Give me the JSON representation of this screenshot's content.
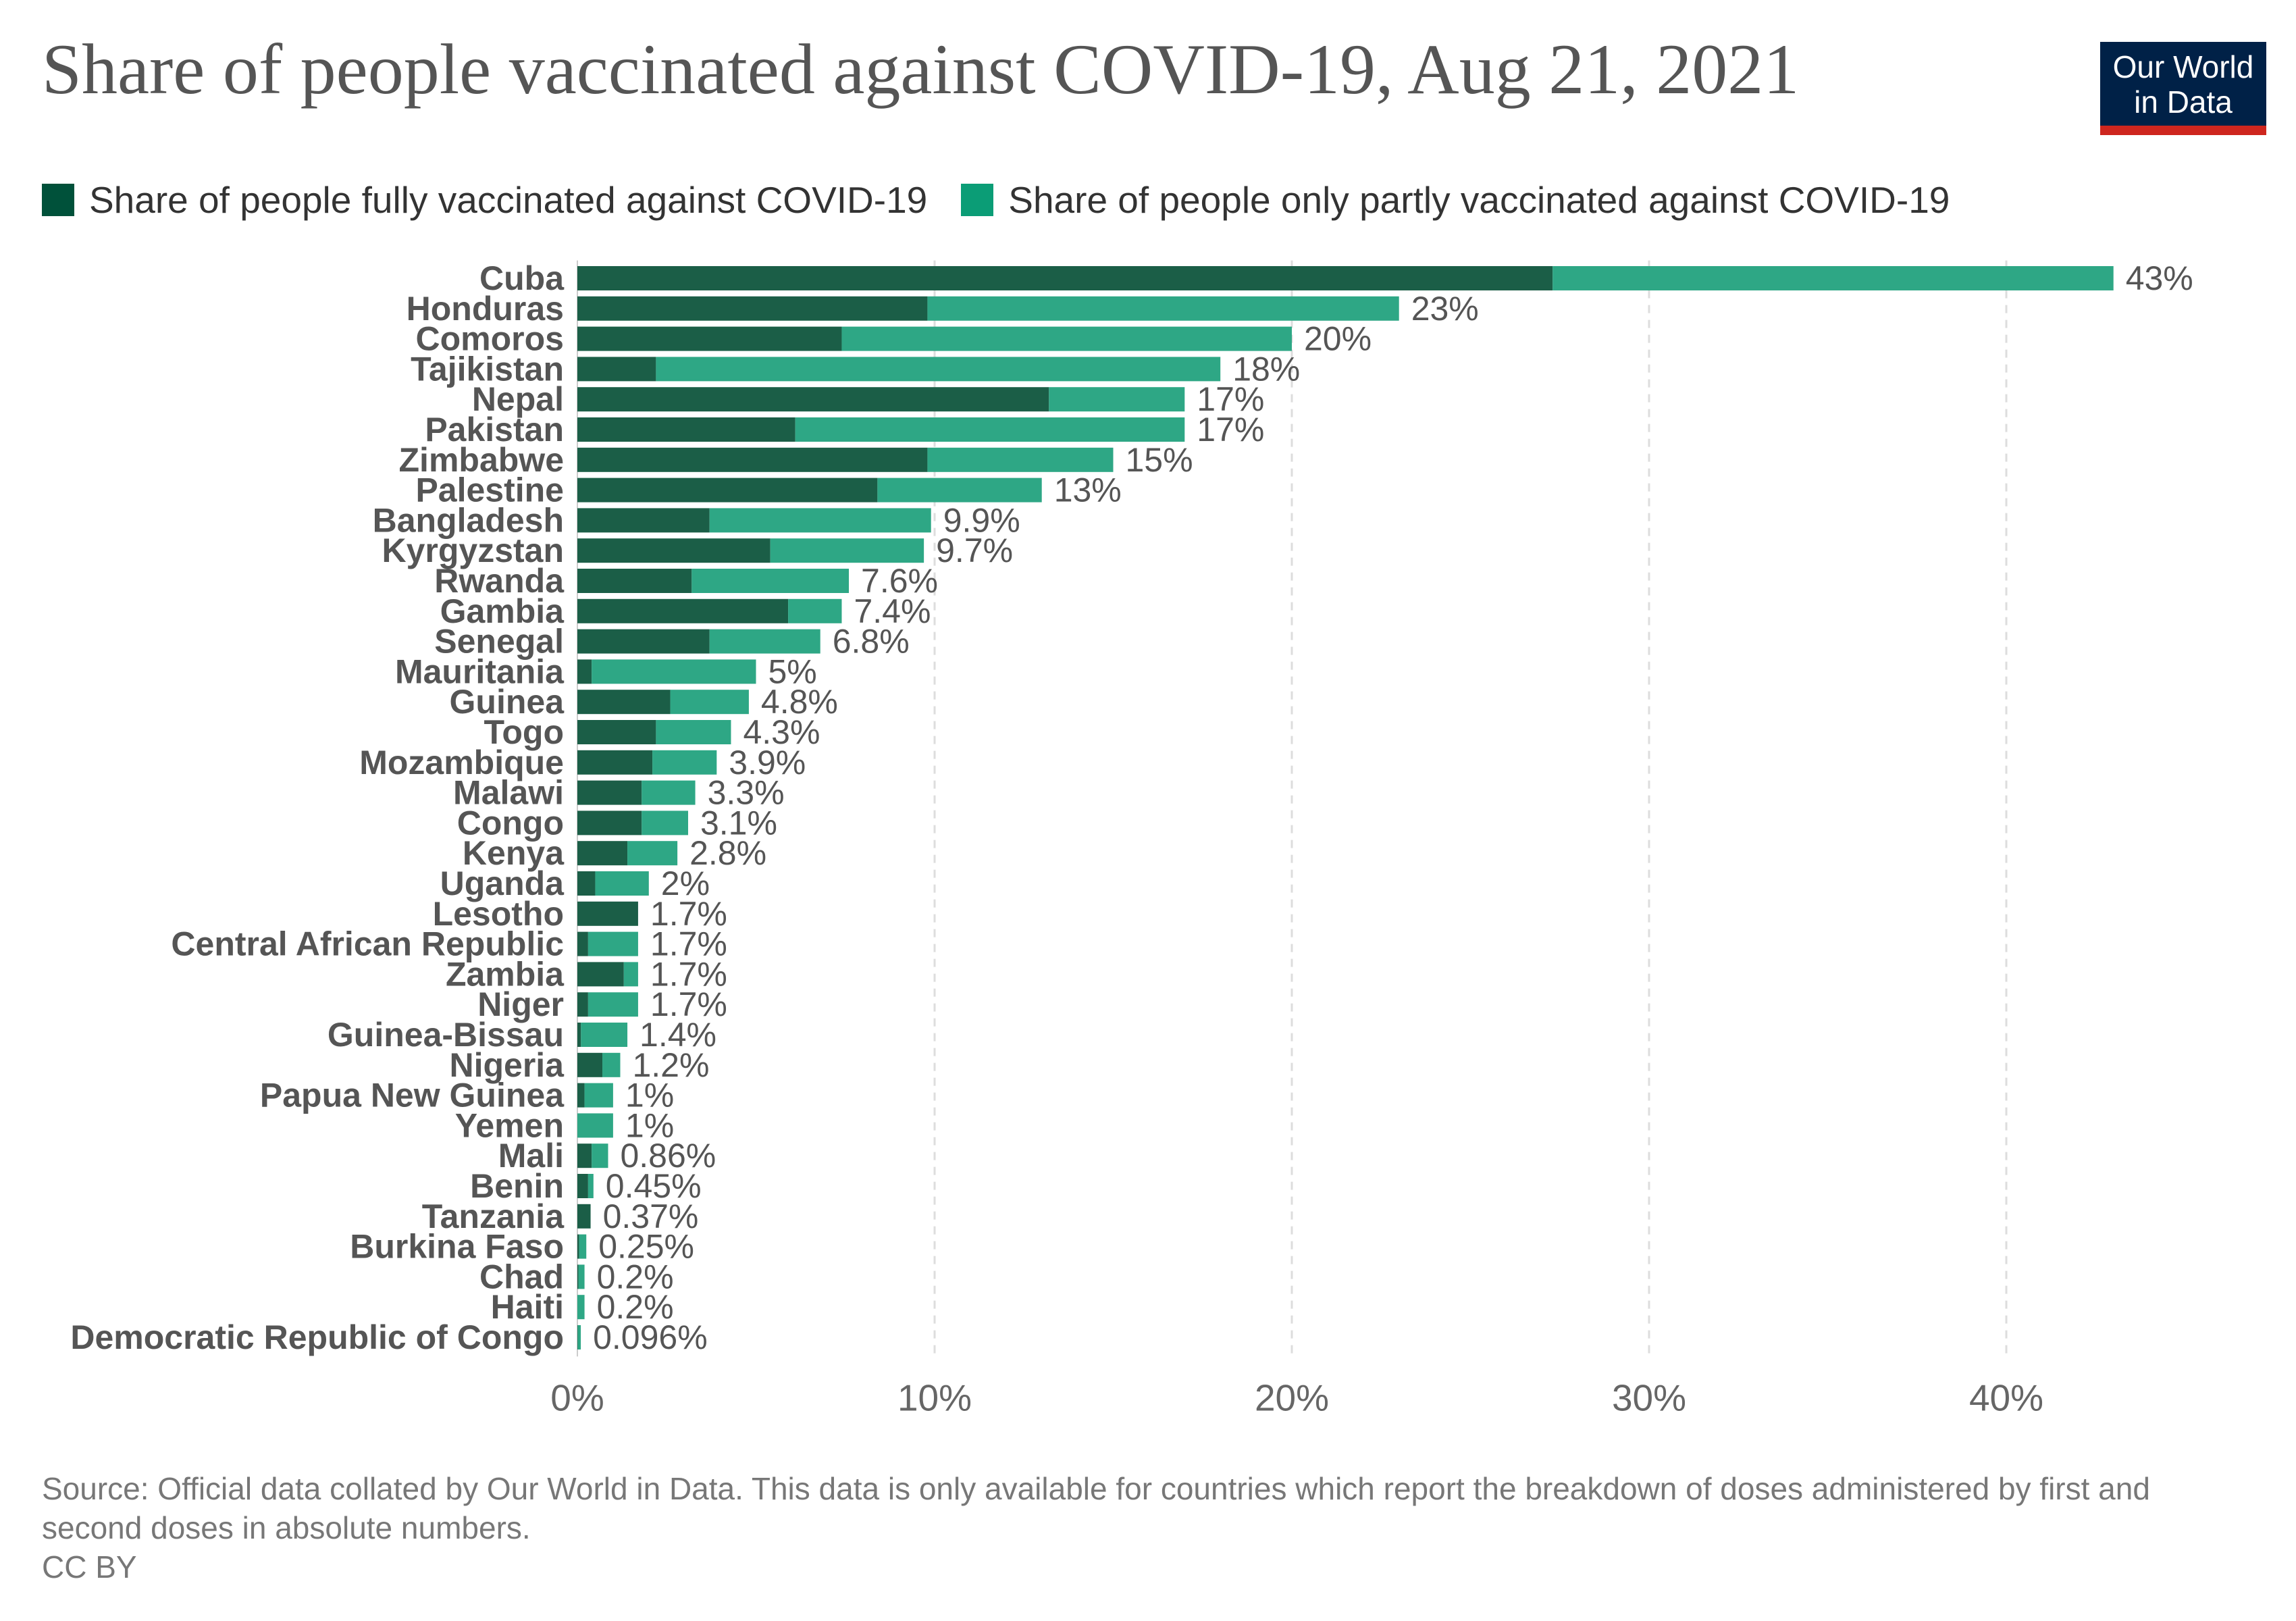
{
  "title": "Share of people vaccinated against COVID-19, Aug 21, 2021",
  "logo": {
    "line1": "Our World",
    "line2": "in Data"
  },
  "legend": [
    {
      "label": "Share of people fully vaccinated against COVID-19",
      "color": "#00513a"
    },
    {
      "label": "Share of people only partly vaccinated against COVID-19",
      "color": "#0b9d76"
    }
  ],
  "footer": {
    "source": "Source: Official data collated by Our World in Data. This data is only available for countries which report the breakdown of doses administered by first and second doses in absolute numbers.",
    "license": "CC BY"
  },
  "chart_data": {
    "type": "bar",
    "orientation": "horizontal",
    "stacked": true,
    "title": "Share of people vaccinated against COVID-19, Aug 21, 2021",
    "xlabel": "",
    "ylabel": "",
    "xlim": [
      0,
      45
    ],
    "x_ticks": [
      "0%",
      "10%",
      "20%",
      "30%",
      "40%"
    ],
    "x_tick_values": [
      0,
      10,
      20,
      30,
      40
    ],
    "grid": "vertical dashed",
    "legend_position": "top-left",
    "categories": [
      "Cuba",
      "Honduras",
      "Comoros",
      "Tajikistan",
      "Nepal",
      "Pakistan",
      "Zimbabwe",
      "Palestine",
      "Bangladesh",
      "Kyrgyzstan",
      "Rwanda",
      "Gambia",
      "Senegal",
      "Mauritania",
      "Guinea",
      "Togo",
      "Mozambique",
      "Malawi",
      "Congo",
      "Kenya",
      "Uganda",
      "Lesotho",
      "Central African Republic",
      "Zambia",
      "Niger",
      "Guinea-Bissau",
      "Nigeria",
      "Papua New Guinea",
      "Yemen",
      "Mali",
      "Benin",
      "Tanzania",
      "Burkina Faso",
      "Chad",
      "Haiti",
      "Democratic Republic of Congo"
    ],
    "series": [
      {
        "name": "Share of people fully vaccinated against COVID-19",
        "color": "#1b5e47",
        "values": [
          27.3,
          9.8,
          7.4,
          2.2,
          13.2,
          6.1,
          9.8,
          8.4,
          3.7,
          5.4,
          3.2,
          5.9,
          3.7,
          0.4,
          2.6,
          2.2,
          2.1,
          1.8,
          1.8,
          1.4,
          0.5,
          1.7,
          0.3,
          1.3,
          0.3,
          0.1,
          0.7,
          0.2,
          0.0,
          0.4,
          0.3,
          0.37,
          0.05,
          0.03,
          0.0,
          0.01
        ]
      },
      {
        "name": "Share of people only partly vaccinated against COVID-19",
        "color": "#2ea785",
        "values": [
          15.7,
          13.2,
          12.6,
          15.8,
          3.8,
          10.9,
          5.2,
          4.6,
          6.2,
          4.3,
          4.4,
          1.5,
          3.1,
          4.6,
          2.2,
          2.1,
          1.8,
          1.5,
          1.3,
          1.4,
          1.5,
          0.0,
          1.4,
          0.4,
          1.4,
          1.3,
          0.5,
          0.8,
          1.0,
          0.46,
          0.15,
          0.0,
          0.2,
          0.17,
          0.2,
          0.086
        ]
      }
    ],
    "total_labels": [
      "43%",
      "23%",
      "20%",
      "18%",
      "17%",
      "17%",
      "15%",
      "13%",
      "9.9%",
      "9.7%",
      "7.6%",
      "7.4%",
      "6.8%",
      "5%",
      "4.8%",
      "4.3%",
      "3.9%",
      "3.3%",
      "3.1%",
      "2.8%",
      "2%",
      "1.7%",
      "1.7%",
      "1.7%",
      "1.7%",
      "1.4%",
      "1.2%",
      "1%",
      "1%",
      "0.86%",
      "0.45%",
      "0.37%",
      "0.25%",
      "0.2%",
      "0.2%",
      "0.096%"
    ]
  }
}
